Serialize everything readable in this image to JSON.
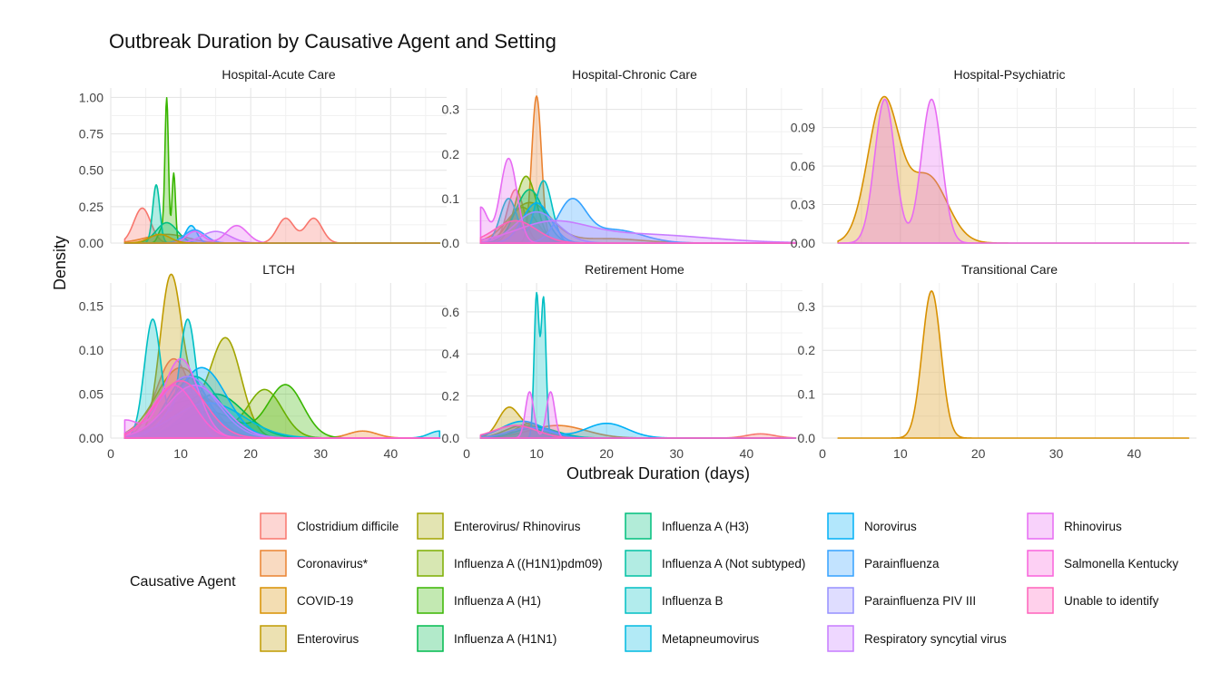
{
  "chart_data": {
    "type": "area",
    "title": "Outbreak Duration by Causative Agent and Setting",
    "xlabel": "Outbreak Duration (days)",
    "ylabel": "Density",
    "x_ticks": [
      0,
      10,
      20,
      30,
      40
    ],
    "xlim": [
      0,
      48
    ],
    "legend_title": "Causative Agent",
    "legend_position": "bottom",
    "grid": true,
    "series": [
      {
        "name": "Clostridium difficile",
        "color": "#F8766D"
      },
      {
        "name": "Coronavirus*",
        "color": "#EA8331"
      },
      {
        "name": "COVID-19",
        "color": "#D89000"
      },
      {
        "name": "Enterovirus",
        "color": "#C09B00"
      },
      {
        "name": "Enterovirus/ Rhinovirus",
        "color": "#A3A500"
      },
      {
        "name": "Influenza A ((H1N1)pdm09)",
        "color": "#7CAE00"
      },
      {
        "name": "Influenza A (H1)",
        "color": "#39B600"
      },
      {
        "name": "Influenza A (H1N1)",
        "color": "#00BB4E"
      },
      {
        "name": "Influenza A (H3)",
        "color": "#00BF7D"
      },
      {
        "name": "Influenza A (Not subtyped)",
        "color": "#00C1A3"
      },
      {
        "name": "Influenza B",
        "color": "#00BFC4"
      },
      {
        "name": "Metapneumovirus",
        "color": "#00BAE0"
      },
      {
        "name": "Norovirus",
        "color": "#00B0F6"
      },
      {
        "name": "Parainfluenza",
        "color": "#35A2FF"
      },
      {
        "name": "Parainfluenza PIV III",
        "color": "#9590FF"
      },
      {
        "name": "Respiratory syncytial virus",
        "color": "#C77CFF"
      },
      {
        "name": "Rhinovirus",
        "color": "#E76BF3"
      },
      {
        "name": "Salmonella Kentucky",
        "color": "#FA62DB"
      },
      {
        "name": "Unable to identify",
        "color": "#FF62BC"
      }
    ],
    "panels": [
      {
        "name": "Hospital-Acute Care",
        "y_ticks": [
          0,
          0.25,
          0.5,
          0.75,
          1.0
        ],
        "y_tick_labels": [
          "0.00",
          "0.25",
          "0.50",
          "0.75",
          "1.00"
        ],
        "ylim": [
          0,
          1.04
        ],
        "curves": [
          {
            "series": 0,
            "peaks": [
              [
                4.5,
                0.24,
                1.2
              ],
              [
                25,
                0.17,
                1.2
              ],
              [
                29,
                0.17,
                1.2
              ]
            ]
          },
          {
            "series": 1,
            "peaks": [
              [
                8,
                0.06,
                3
              ]
            ]
          },
          {
            "series": 6,
            "peaks": [
              [
                8.0,
                0.96,
                0.25
              ],
              [
                9.0,
                0.48,
                0.25
              ],
              [
                7.3,
                0.1,
                0.5
              ]
            ]
          },
          {
            "series": 8,
            "peaks": [
              [
                8,
                0.14,
                1.5
              ]
            ]
          },
          {
            "series": 9,
            "peaks": [
              [
                6.5,
                0.4,
                0.5
              ]
            ]
          },
          {
            "series": 12,
            "peaks": [
              [
                11.5,
                0.12,
                0.8
              ]
            ]
          },
          {
            "series": 13,
            "peaks": [
              [
                12,
                0.09,
                1.5
              ]
            ]
          },
          {
            "series": 15,
            "peaks": [
              [
                15,
                0.08,
                2
              ]
            ]
          },
          {
            "series": 16,
            "peaks": [
              [
                18,
                0.12,
                1.5
              ],
              [
                12,
                0.08,
                1.2
              ]
            ]
          },
          {
            "series": 3,
            "peaks": [
              [
                7,
                0.06,
                1.5
              ]
            ]
          }
        ]
      },
      {
        "name": "Hospital-Chronic Care",
        "y_ticks": [
          0,
          0.1,
          0.2,
          0.3
        ],
        "y_tick_labels": [
          "0.0",
          "0.1",
          "0.2",
          "0.3"
        ],
        "ylim": [
          0,
          0.34
        ],
        "curves": [
          {
            "series": 0,
            "peaks": [
              [
                7,
                0.12,
                1.2
              ]
            ]
          },
          {
            "series": 1,
            "peaks": [
              [
                10,
                0.33,
                0.7
              ]
            ]
          },
          {
            "series": 2,
            "peaks": [
              [
                9,
                0.09,
                3
              ],
              [
                20,
                0.01,
                5
              ]
            ]
          },
          {
            "series": 3,
            "peaks": [
              [
                8,
                0.08,
                2
              ]
            ]
          },
          {
            "series": 5,
            "peaks": [
              [
                8.5,
                0.15,
                1.5
              ]
            ]
          },
          {
            "series": 8,
            "peaks": [
              [
                9,
                0.12,
                2
              ]
            ]
          },
          {
            "series": 10,
            "peaks": [
              [
                11,
                0.14,
                1.2
              ],
              [
                6,
                0.1,
                1.2
              ]
            ]
          },
          {
            "series": 12,
            "peaks": [
              [
                10,
                0.09,
                2
              ]
            ]
          },
          {
            "series": 13,
            "peaks": [
              [
                15,
                0.09,
                2
              ],
              [
                21,
                0.03,
                4
              ]
            ]
          },
          {
            "series": 14,
            "peaks": [
              [
                10,
                0.07,
                3
              ]
            ]
          },
          {
            "series": 15,
            "peaks": [
              [
                12,
                0.04,
                5
              ],
              [
                24,
                0.02,
                10
              ]
            ]
          },
          {
            "series": 16,
            "peaks": [
              [
                6,
                0.19,
                1.2
              ],
              [
                2,
                0.08,
                1
              ]
            ]
          },
          {
            "series": 18,
            "peaks": [
              [
                7,
                0.05,
                3
              ]
            ]
          }
        ]
      },
      {
        "name": "Hospital-Psychiatric",
        "y_ticks": [
          0,
          0.03,
          0.06,
          0.09
        ],
        "y_tick_labels": [
          "0.00",
          "0.03",
          "0.06",
          "0.09"
        ],
        "ylim": [
          0,
          0.118
        ],
        "curves": [
          {
            "series": 2,
            "peaks": [
              [
                7.8,
                0.11,
                2.0
              ],
              [
                13.5,
                0.052,
                2.5
              ]
            ]
          },
          {
            "series": 16,
            "peaks": [
              [
                8,
                0.112,
                1.3
              ],
              [
                14,
                0.112,
                1.3
              ]
            ]
          }
        ]
      },
      {
        "name": "LTCH",
        "y_ticks": [
          0,
          0.05,
          0.1,
          0.15
        ],
        "y_tick_labels": [
          "0.00",
          "0.05",
          "0.10",
          "0.15"
        ],
        "ylim": [
          0,
          0.172
        ],
        "curves": [
          {
            "series": 0,
            "peaks": [
              [
                9,
                0.09,
                2.5
              ]
            ]
          },
          {
            "series": 1,
            "peaks": [
              [
                12,
                0.05,
                4
              ],
              [
                36,
                0.008,
                2
              ]
            ]
          },
          {
            "series": 2,
            "peaks": [
              [
                10,
                0.08,
                3.5
              ]
            ]
          },
          {
            "series": 3,
            "peaks": [
              [
                8.5,
                0.16,
                1.5
              ],
              [
                12,
                0.05,
                3
              ]
            ]
          },
          {
            "series": 4,
            "peaks": [
              [
                16.5,
                0.11,
                2.2
              ],
              [
                10,
                0.04,
                3
              ]
            ]
          },
          {
            "series": 5,
            "peaks": [
              [
                22,
                0.055,
                2.5
              ],
              [
                12,
                0.04,
                3
              ]
            ]
          },
          {
            "series": 6,
            "peaks": [
              [
                25,
                0.06,
                2.5
              ],
              [
                14,
                0.03,
                4
              ]
            ]
          },
          {
            "series": 7,
            "peaks": [
              [
                15,
                0.05,
                4
              ]
            ]
          },
          {
            "series": 8,
            "peaks": [
              [
                12,
                0.07,
                3.5
              ]
            ]
          },
          {
            "series": 9,
            "peaks": [
              [
                11,
                0.07,
                3
              ]
            ]
          },
          {
            "series": 10,
            "peaks": [
              [
                6,
                0.135,
                1.2
              ],
              [
                11,
                0.135,
                1.2
              ]
            ]
          },
          {
            "series": 11,
            "peaks": [
              [
                14,
                0.04,
                5
              ],
              [
                47,
                0.008,
                1.5
              ]
            ]
          },
          {
            "series": 12,
            "peaks": [
              [
                13,
                0.08,
                3.5
              ]
            ]
          },
          {
            "series": 13,
            "peaks": [
              [
                12,
                0.06,
                4
              ]
            ]
          },
          {
            "series": 14,
            "peaks": [
              [
                11,
                0.07,
                4
              ]
            ]
          },
          {
            "series": 15,
            "peaks": [
              [
                12,
                0.06,
                4
              ]
            ]
          },
          {
            "series": 16,
            "peaks": [
              [
                10,
                0.09,
                2.5
              ],
              [
                2,
                0.02,
                2
              ]
            ]
          },
          {
            "series": 17,
            "peaks": [
              [
                9,
                0.06,
                3
              ]
            ]
          },
          {
            "series": 18,
            "peaks": [
              [
                10,
                0.065,
                3.5
              ]
            ]
          }
        ]
      },
      {
        "name": "Retirement Home",
        "y_ticks": [
          0,
          0.2,
          0.4,
          0.6
        ],
        "y_tick_labels": [
          "0.0",
          "0.2",
          "0.4",
          "0.6"
        ],
        "ylim": [
          0,
          0.72
        ],
        "curves": [
          {
            "series": 0,
            "peaks": [
              [
                42,
                0.02,
                2
              ]
            ]
          },
          {
            "series": 1,
            "peaks": [
              [
                13,
                0.06,
                4
              ]
            ]
          },
          {
            "series": 3,
            "peaks": [
              [
                6,
                0.14,
                1.5
              ],
              [
                10,
                0.05,
                2
              ]
            ]
          },
          {
            "series": 4,
            "peaks": [
              [
                9,
                0.07,
                2
              ]
            ]
          },
          {
            "series": 5,
            "peaks": [
              [
                8,
                0.06,
                2.5
              ]
            ]
          },
          {
            "series": 8,
            "peaks": [
              [
                10,
                0.05,
                3
              ]
            ]
          },
          {
            "series": 10,
            "peaks": [
              [
                10,
                0.68,
                0.35
              ],
              [
                11,
                0.66,
                0.35
              ]
            ]
          },
          {
            "series": 12,
            "peaks": [
              [
                8,
                0.08,
                3
              ],
              [
                20,
                0.07,
                3
              ]
            ]
          },
          {
            "series": 13,
            "peaks": [
              [
                9,
                0.05,
                3
              ]
            ]
          },
          {
            "series": 16,
            "peaks": [
              [
                9,
                0.22,
                0.6
              ],
              [
                12,
                0.22,
                0.6
              ]
            ]
          },
          {
            "series": 18,
            "peaks": [
              [
                7,
                0.06,
                3
              ]
            ]
          }
        ]
      },
      {
        "name": "Transitional Care",
        "y_ticks": [
          0,
          0.1,
          0.2,
          0.3
        ],
        "y_tick_labels": [
          "0.0",
          "0.1",
          "0.2",
          "0.3"
        ],
        "ylim": [
          0,
          0.345
        ],
        "curves": [
          {
            "series": 2,
            "peaks": [
              [
                14,
                0.335,
                1.2
              ]
            ]
          }
        ]
      }
    ]
  }
}
